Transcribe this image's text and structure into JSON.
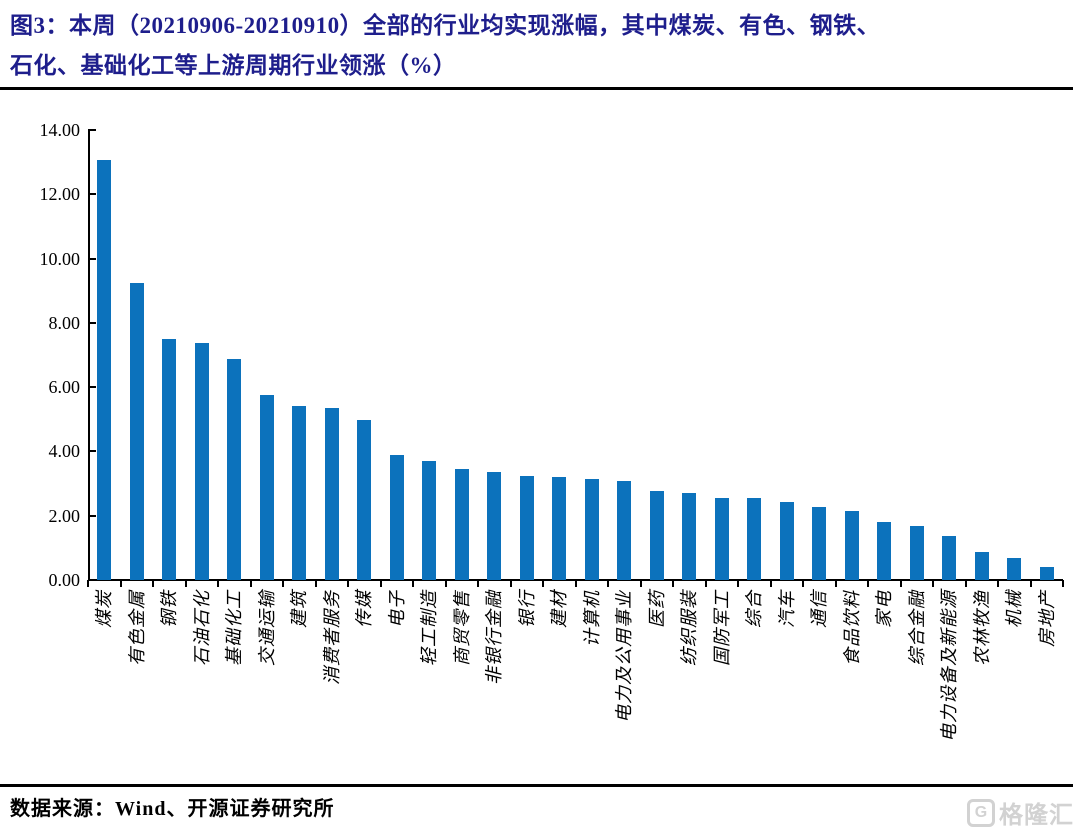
{
  "figure": {
    "title_lines": [
      "图3：本周（20210906-20210910）全部的行业均实现涨幅，其中煤炭、有色、钢铁、",
      "石化、基础化工等上游周期行业领涨（%）"
    ],
    "source_label": "数据来源：Wind、开源证券研究所",
    "watermark": "格隆汇",
    "watermark_logo": "G"
  },
  "colors": {
    "bar": "#0c72bc",
    "title": "#1e1e8c",
    "axis": "#000000",
    "watermark": "#d2d2d2"
  },
  "chart_data": {
    "type": "bar",
    "title": "本周（20210906-20210910）全部的行业均实现涨幅，其中煤炭、有色、钢铁、石化、基础化工等上游周期行业领涨（%）",
    "categories": [
      "煤炭",
      "有色金属",
      "钢铁",
      "石油石化",
      "基础化工",
      "交通运输",
      "建筑",
      "消费者服务",
      "传媒",
      "电子",
      "轻工制造",
      "商贸零售",
      "非银行金融",
      "银行",
      "建材",
      "计算机",
      "电力及公用事业",
      "医药",
      "纺织服装",
      "国防军工",
      "综合",
      "汽车",
      "通信",
      "食品饮料",
      "家电",
      "综合金融",
      "电力设备及新能源",
      "农林牧渔",
      "机械",
      "房地产"
    ],
    "values": [
      13.08,
      9.25,
      7.5,
      7.36,
      6.89,
      5.76,
      5.42,
      5.36,
      4.97,
      3.9,
      3.71,
      3.46,
      3.35,
      3.25,
      3.22,
      3.15,
      3.07,
      2.76,
      2.7,
      2.56,
      2.54,
      2.42,
      2.28,
      2.15,
      1.82,
      1.67,
      1.38,
      0.86,
      0.67,
      0.42
    ],
    "xlabel": "",
    "ylabel": "",
    "ylim": [
      0,
      14
    ],
    "ytick_step": 2,
    "ytick_labels": [
      "0.00",
      "2.00",
      "4.00",
      "6.00",
      "8.00",
      "10.00",
      "12.00",
      "14.00"
    ],
    "grid": false,
    "legend": null,
    "bar_orientation": "vertical",
    "x_label_rotation_deg": -90
  }
}
